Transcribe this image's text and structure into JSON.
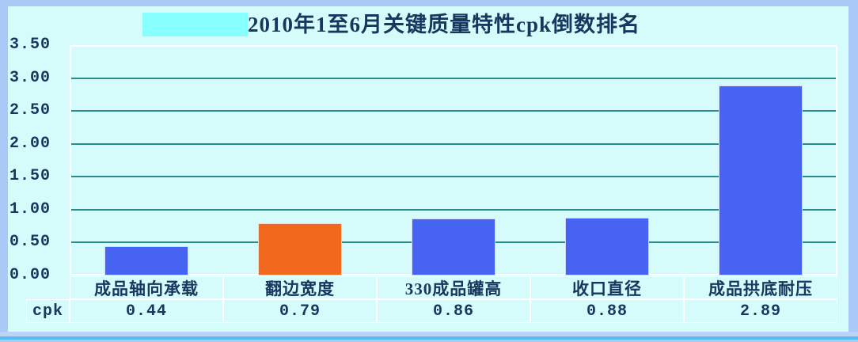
{
  "page": {
    "background_color": "#d5fbfb",
    "frame_color": "#a9caf7",
    "bottom_line_color": "#57bcef"
  },
  "title": {
    "text": "2010年1至6月关键质量特性cpk倒数排名",
    "color": "#17375e",
    "highlight_box_color": "#87ffff"
  },
  "chart_data": {
    "type": "bar",
    "title": "2010年1至6月关键质量特性cpk倒数排名",
    "categories": [
      "成品轴向承载",
      "翻边宽度",
      "330成品罐高",
      "收口直径",
      "成品拱底耐压"
    ],
    "series": [
      {
        "name": "cpk",
        "values": [
          0.44,
          0.79,
          0.86,
          0.88,
          2.89
        ]
      }
    ],
    "bar_colors": [
      "#4663f2",
      "#f2691e",
      "#4663f2",
      "#4663f2",
      "#4663f2"
    ],
    "xlabel": "",
    "ylabel": "",
    "ylim": [
      0,
      3.5
    ],
    "ytick_step": 0.5,
    "ytick_labels": [
      "0.00",
      "0.50",
      "1.00",
      "1.50",
      "2.00",
      "2.50",
      "3.00",
      "3.50"
    ],
    "grid": true,
    "gridline_color": "#268b8b",
    "legend": "none",
    "data_table": {
      "row_label": "cpk",
      "values": [
        "0.44",
        "0.79",
        "0.86",
        "0.88",
        "2.89"
      ]
    }
  }
}
